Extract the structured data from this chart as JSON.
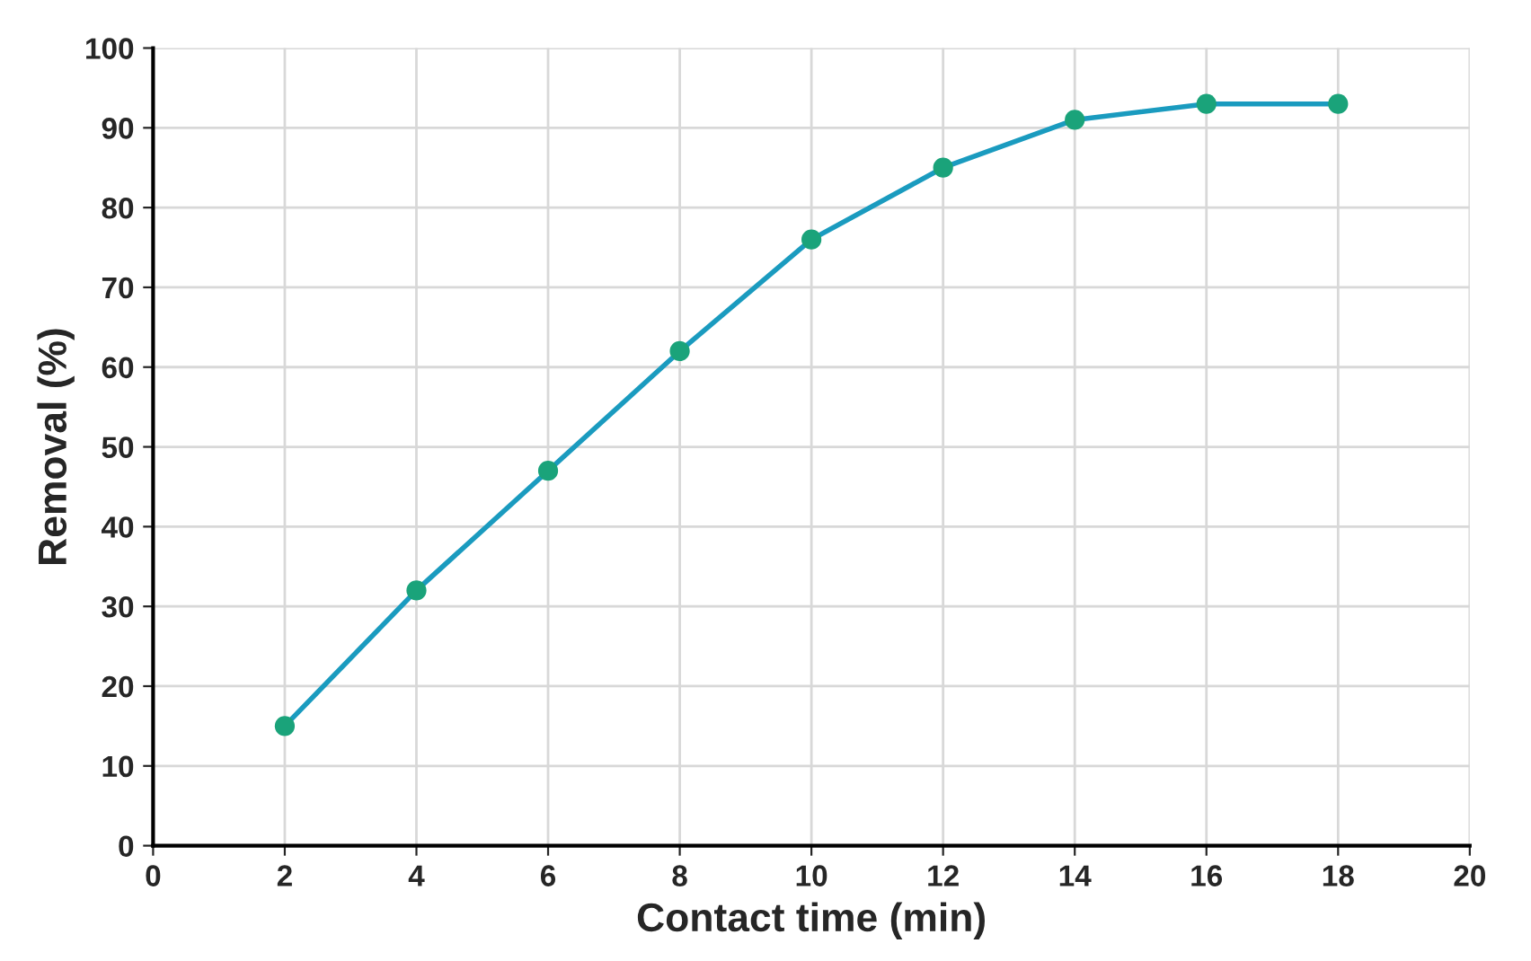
{
  "chart_data": {
    "type": "line",
    "xlabel": "Contact time (min)",
    "ylabel": "Removal (%)",
    "x": [
      2,
      4,
      6,
      8,
      10,
      12,
      14,
      16,
      18
    ],
    "series": [
      {
        "color": "#1a9bbf",
        "colors": [
          "#1aa37a",
          "#1aa37a",
          "#1aa37a",
          "#1aa37a",
          "#1aa37a",
          "#1aa37a",
          "#1aa37a",
          "#1aa37a",
          "#1aa37a"
        ],
        "values": [
          15,
          32,
          47,
          62,
          76,
          85,
          91,
          93,
          93
        ]
      }
    ],
    "xlim": [
      0,
      20
    ],
    "xticks": [
      0,
      2,
      4,
      6,
      8,
      10,
      12,
      14,
      16,
      18,
      20
    ],
    "ylim": [
      0,
      100
    ],
    "yticks": [
      0,
      10,
      20,
      30,
      40,
      50,
      60,
      70,
      80,
      90,
      100
    ],
    "grid": true,
    "marker": "circle",
    "line_style": "solid"
  }
}
